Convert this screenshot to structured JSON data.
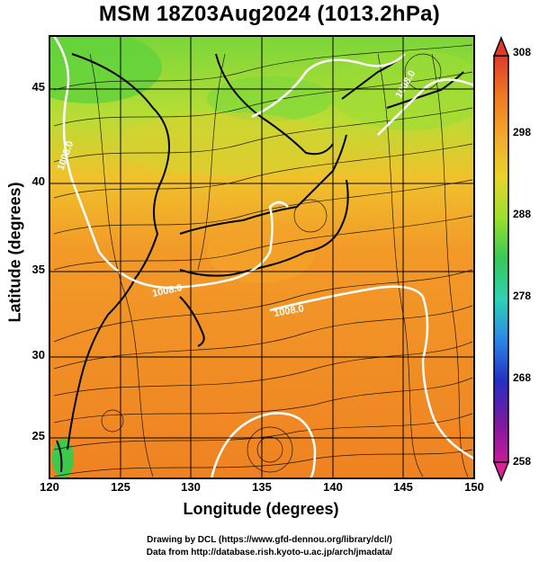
{
  "title": "MSM 18Z03Aug2024 (1013.2hPa)",
  "axes": {
    "xlabel": "Longitude (degrees)",
    "ylabel": "Latitude  (degrees)",
    "xticks": [
      "120",
      "125",
      "130",
      "135",
      "140",
      "145",
      "150"
    ],
    "yticks": [
      "45",
      "40",
      "35",
      "30",
      "25"
    ]
  },
  "colorbar": {
    "ticks": [
      "308",
      "298",
      "288",
      "278",
      "268",
      "258"
    ],
    "colors": [
      "#e03a2a",
      "#f07a22",
      "#f4a92c",
      "#e6d52a",
      "#9be02c",
      "#36c85a",
      "#2fd2b4",
      "#2a86e8",
      "#2430c4",
      "#7a1aa0",
      "#c81a9a"
    ]
  },
  "map": {
    "contour_labels": [
      "1008.0",
      "1008.0",
      "1008.0",
      "1008.0"
    ],
    "field_colors": {
      "warm": "#f08a24",
      "mid": "#f4b52a",
      "cool": "#a9dc3a",
      "cold": "#60d03c"
    }
  },
  "credits": {
    "line1": "Drawing by DCL (https://www.gfd-dennou.org/library/dcl/)",
    "line2": "Data from http://database.rish.kyoto-u.ac.jp/arch/jmadata/"
  }
}
